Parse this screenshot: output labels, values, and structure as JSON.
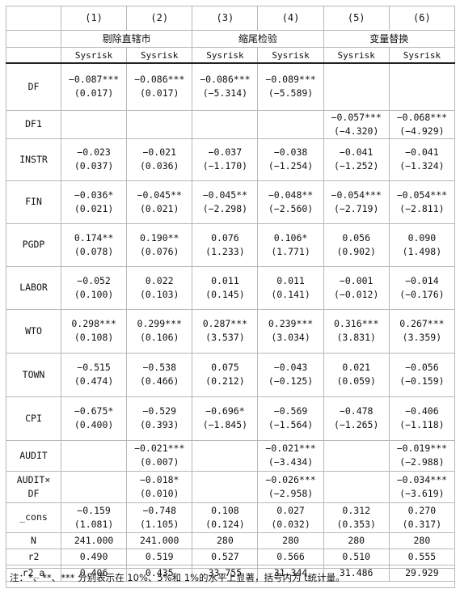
{
  "table": {
    "col_numbers": [
      "(1)",
      "(2)",
      "(3)",
      "(4)",
      "(5)",
      "(6)"
    ],
    "groups": [
      "剔除直辖市",
      "缩尾检验",
      "变量替换"
    ],
    "dep_vars": [
      "Sysrisk",
      "Sysrisk",
      "Sysrisk",
      "Sysrisk",
      "Sysrisk",
      "Sysrisk"
    ],
    "rows": [
      {
        "var": "DF",
        "coef": [
          "−0.087***",
          "−0.086***",
          "−0.086***",
          "−0.089***",
          "",
          ""
        ],
        "se": [
          "(0.017)",
          "(0.017)",
          "(−5.314)",
          "(−5.589)",
          "",
          ""
        ]
      },
      {
        "var": "DF1",
        "coef": [
          "",
          "",
          "",
          "",
          "−0.057***",
          "−0.068***"
        ],
        "se": [
          "",
          "",
          "",
          "",
          "(−4.320)",
          "(−4.929)"
        ]
      },
      {
        "var": "INSTR",
        "coef": [
          "−0.023",
          "−0.021",
          "−0.037",
          "−0.038",
          "−0.041",
          "−0.041"
        ],
        "se": [
          "(0.037)",
          "(0.036)",
          "(−1.170)",
          "(−1.254)",
          "(−1.252)",
          "(−1.324)"
        ]
      },
      {
        "var": "FIN",
        "coef": [
          "−0.036*",
          "−0.045**",
          "−0.045**",
          "−0.048**",
          "−0.054***",
          "−0.054***"
        ],
        "se": [
          "(0.021)",
          "(0.021)",
          "(−2.298)",
          "(−2.560)",
          "(−2.719)",
          "(−2.811)"
        ]
      },
      {
        "var": "PGDP",
        "coef": [
          "0.174**",
          "0.190**",
          "0.076",
          "0.106*",
          "0.056",
          "0.090"
        ],
        "se": [
          "(0.078)",
          "(0.076)",
          "(1.233)",
          "(1.771)",
          "(0.902)",
          "(1.498)"
        ]
      },
      {
        "var": "LABOR",
        "coef": [
          "−0.052",
          "0.022",
          "0.011",
          "0.011",
          "−0.001",
          "−0.014"
        ],
        "se": [
          "(0.100)",
          "(0.103)",
          "(0.145)",
          "(0.141)",
          "(−0.012)",
          "(−0.176)"
        ]
      },
      {
        "var": "WTO",
        "coef": [
          "0.298***",
          "0.299***",
          "0.287***",
          "0.239***",
          "0.316***",
          "0.267***"
        ],
        "se": [
          "(0.108)",
          "(0.106)",
          "(3.537)",
          "(3.034)",
          "(3.831)",
          "(3.359)"
        ]
      },
      {
        "var": "TOWN",
        "coef": [
          "−0.515",
          "−0.538",
          "0.075",
          "−0.043",
          "0.021",
          "−0.056"
        ],
        "se": [
          "(0.474)",
          "(0.466)",
          "(0.212)",
          "(−0.125)",
          "(0.059)",
          "(−0.159)"
        ]
      },
      {
        "var": "CPI",
        "coef": [
          "−0.675*",
          "−0.529",
          "−0.696*",
          "−0.569",
          "−0.478",
          "−0.406"
        ],
        "se": [
          "(0.400)",
          "(0.393)",
          "(−1.845)",
          "(−1.564)",
          "(−1.265)",
          "(−1.118)"
        ]
      },
      {
        "var": "AUDIT",
        "coef": [
          "",
          "−0.021***",
          "",
          "−0.021***",
          "",
          "−0.019***"
        ],
        "se": [
          "",
          "(0.007)",
          "",
          "(−3.434)",
          "",
          "(−2.988)"
        ]
      },
      {
        "var": "AUDIT×\nDF",
        "var_l1": "AUDIT×",
        "var_l2": "DF",
        "coef": [
          "",
          "−0.018*",
          "",
          "−0.026***",
          "",
          "−0.034***"
        ],
        "se": [
          "",
          "(0.010)",
          "",
          "(−2.958)",
          "",
          "(−3.619)"
        ]
      },
      {
        "var": "_cons",
        "coef": [
          "−0.159",
          "−0.748",
          "0.108",
          "0.027",
          "0.312",
          "0.270"
        ],
        "se": [
          "(1.081)",
          "(1.105)",
          "(0.124)",
          "(0.032)",
          "(0.353)",
          "(0.317)"
        ]
      }
    ],
    "stats": [
      {
        "label": "N",
        "values": [
          "241.000",
          "241.000",
          "280",
          "280",
          "280",
          "280"
        ]
      },
      {
        "label": "r2",
        "values": [
          "0.490",
          "0.519",
          "0.527",
          "0.566",
          "0.510",
          "0.555"
        ]
      },
      {
        "label": "r2_a",
        "values": [
          "0.406",
          "0.435",
          "33.755",
          "31.344",
          "31.486",
          "29.929"
        ]
      }
    ]
  },
  "note": "注：*、**、*** 分别表示在 10%、5%和 1%的水平上显著，括号内为 t统计量。"
}
